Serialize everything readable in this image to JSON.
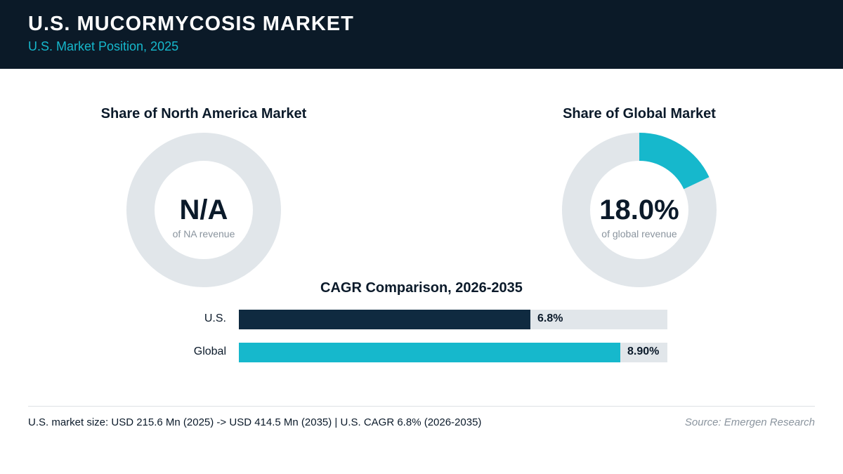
{
  "header": {
    "title": "U.S. MUCORMYCOSIS MARKET",
    "subtitle": "U.S. Market Position, 2025"
  },
  "chart_data": [
    {
      "type": "pie",
      "title": "Share of North America Market",
      "center_value": "N/A",
      "center_caption": "of NA revenue",
      "share_percent": null,
      "colors": {
        "fill": "#16b8cc",
        "track": "#e1e6ea"
      }
    },
    {
      "type": "pie",
      "title": "Share of Global Market",
      "center_value": "18.0%",
      "center_caption": "of global revenue",
      "share_percent": 18.0,
      "colors": {
        "fill": "#16b8cc",
        "track": "#e1e6ea"
      }
    },
    {
      "type": "bar",
      "title": "CAGR Comparison, 2026-2035",
      "categories": [
        "U.S.",
        "Global"
      ],
      "values": [
        6.8,
        8.9
      ],
      "value_labels": [
        "6.8%",
        "8.90%"
      ],
      "colors": [
        "#0f2a40",
        "#16b8cc"
      ],
      "track_color": "#e1e6ea",
      "xlim": [
        0,
        10
      ]
    }
  ],
  "footer": {
    "note": "U.S. market size: USD 215.6 Mn (2025) -> USD 414.5 Mn (2035)  |  U.S. CAGR 6.8% (2026-2035)",
    "source": "Source: Emergen Research"
  }
}
